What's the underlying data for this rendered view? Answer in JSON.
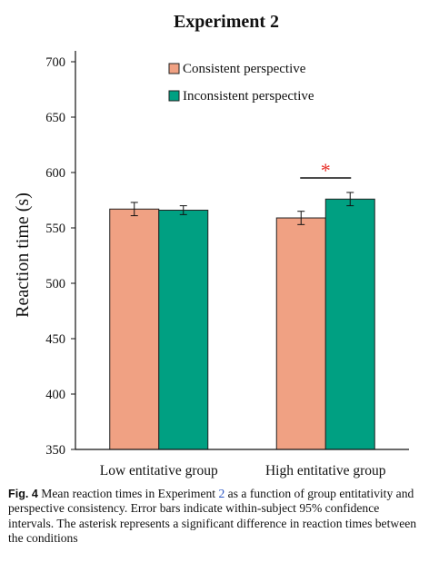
{
  "chart_data": {
    "type": "bar",
    "title": "Experiment 2",
    "ylabel": "Reaction time (s)",
    "xlabel": "",
    "ylim": [
      350,
      700
    ],
    "yticks": [
      350,
      400,
      450,
      500,
      550,
      600,
      650,
      700
    ],
    "categories": [
      "Low entitative group",
      "High entitative group"
    ],
    "series": [
      {
        "name": "Consistent perspective",
        "color": "#f0a183",
        "values": [
          567,
          559
        ],
        "errors": [
          6,
          6
        ]
      },
      {
        "name": "Inconsistent perspective",
        "color": "#00a082",
        "values": [
          566,
          576
        ],
        "errors": [
          4,
          6
        ]
      }
    ],
    "legend_position": "top-right",
    "grid": false,
    "annotations": [
      {
        "text": "*",
        "category": "High entitative group",
        "color": "#e8312a",
        "meaning": "significant difference"
      }
    ]
  },
  "caption": {
    "label": "Fig. 4",
    "before_ref": "Mean reaction times in Experiment",
    "ref": "2",
    "after_ref": "as a function of group entitativity and perspective consistency. Error bars indicate within-subject 95% confidence intervals. The asterisk represents a significant difference in reaction times between the conditions"
  }
}
